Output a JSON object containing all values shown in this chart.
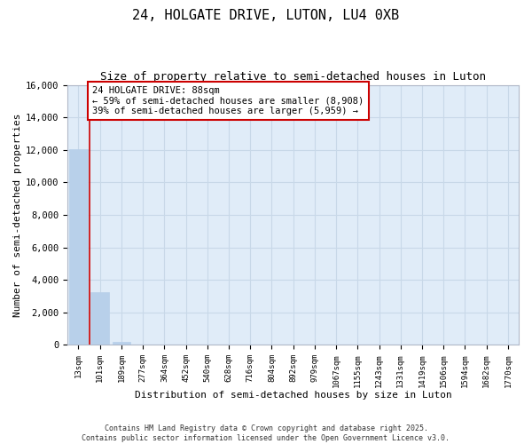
{
  "title_line1": "24, HOLGATE DRIVE, LUTON, LU4 0XB",
  "title_line2": "Size of property relative to semi-detached houses in Luton",
  "xlabel": "Distribution of semi-detached houses by size in Luton",
  "ylabel": "Number of semi-detached properties",
  "categories": [
    "13sqm",
    "101sqm",
    "189sqm",
    "277sqm",
    "364sqm",
    "452sqm",
    "540sqm",
    "628sqm",
    "716sqm",
    "804sqm",
    "892sqm",
    "979sqm",
    "1067sqm",
    "1155sqm",
    "1243sqm",
    "1331sqm",
    "1419sqm",
    "1506sqm",
    "1594sqm",
    "1682sqm",
    "1770sqm"
  ],
  "values": [
    12050,
    3250,
    200,
    0,
    0,
    0,
    0,
    0,
    0,
    0,
    0,
    0,
    0,
    0,
    0,
    0,
    0,
    0,
    0,
    0,
    0
  ],
  "bar_color": "#b8d0ea",
  "grid_color": "#c8d8e8",
  "background_color": "#e0ecf8",
  "annotation_box_color": "#cc0000",
  "property_line_color": "#cc0000",
  "property_line_x": 0.5,
  "annotation_title": "24 HOLGATE DRIVE: 88sqm",
  "annotation_line1": "← 59% of semi-detached houses are smaller (8,908)",
  "annotation_line2": "39% of semi-detached houses are larger (5,959) →",
  "ylim": [
    0,
    16000
  ],
  "yticks": [
    0,
    2000,
    4000,
    6000,
    8000,
    10000,
    12000,
    14000,
    16000
  ],
  "footer_line1": "Contains HM Land Registry data © Crown copyright and database right 2025.",
  "footer_line2": "Contains public sector information licensed under the Open Government Licence v3.0."
}
